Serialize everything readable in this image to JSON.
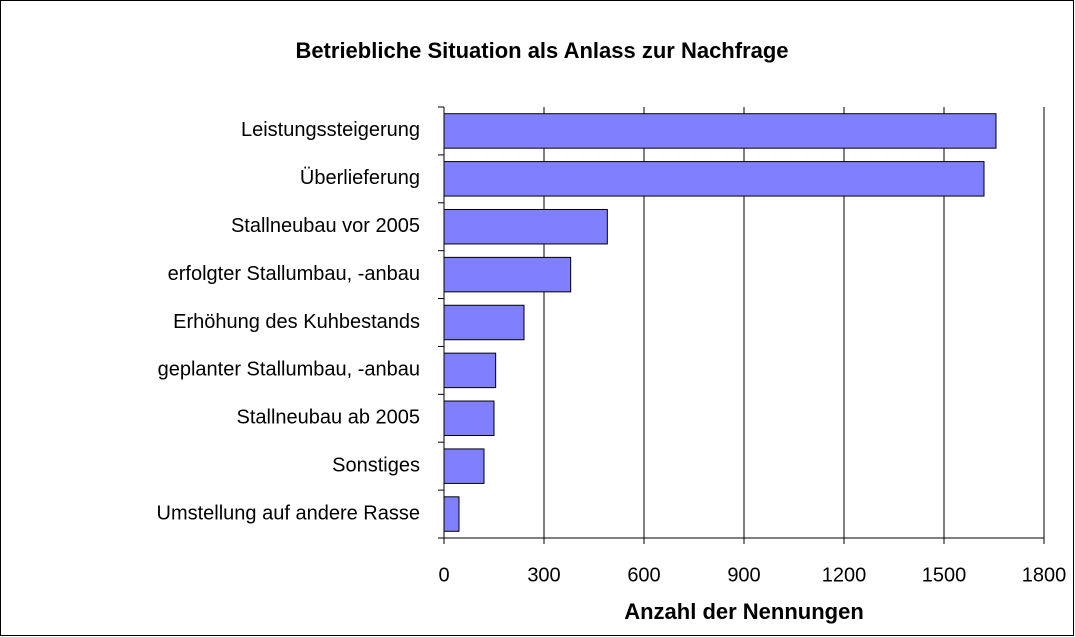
{
  "chart_data": {
    "type": "bar",
    "orientation": "horizontal",
    "title": "Betriebliche Situation als Anlass zur Nachfrage",
    "x_label": "Anzahl der Nennungen",
    "categories": [
      "Leistungssteigerung",
      "Überlieferung",
      "Stallneubau vor 2005",
      "erfolgter Stallumbau, -anbau",
      "Erhöhung des Kuhbestands",
      "geplanter Stallumbau, -anbau",
      "Stallneubau ab 2005",
      "Sonstiges",
      "Umstellung auf andere Rasse"
    ],
    "values": [
      1656,
      1620,
      490,
      380,
      240,
      155,
      150,
      120,
      45
    ],
    "color": "#8080ff",
    "xlim": [
      0,
      1800
    ],
    "xticks": [
      0,
      300,
      600,
      900,
      1200,
      1500,
      1800
    ],
    "grid": true
  }
}
